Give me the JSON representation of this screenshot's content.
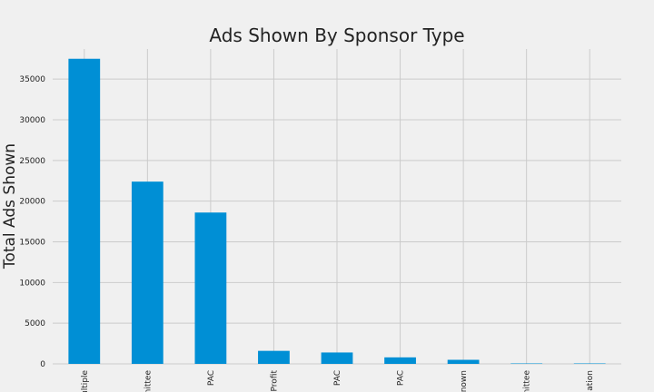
{
  "chart_data": {
    "type": "bar",
    "title": "Ads Shown By Sponsor Type",
    "xlabel": "",
    "ylabel": "Total Ads Shown",
    "categories": [
      "ultiple",
      "nittee",
      "PAC",
      "Profit",
      "PAC",
      "PAC",
      "nown",
      "nittee",
      "ation"
    ],
    "values": [
      37500,
      22400,
      18600,
      1600,
      1400,
      800,
      500,
      30,
      20
    ],
    "ylim": [
      0,
      38700
    ],
    "yticks": [
      0,
      5000,
      10000,
      15000,
      20000,
      25000,
      30000,
      35000
    ],
    "grid": true,
    "legend": "none",
    "bar_color": "#008fd5",
    "background": "#f0f0f0"
  }
}
